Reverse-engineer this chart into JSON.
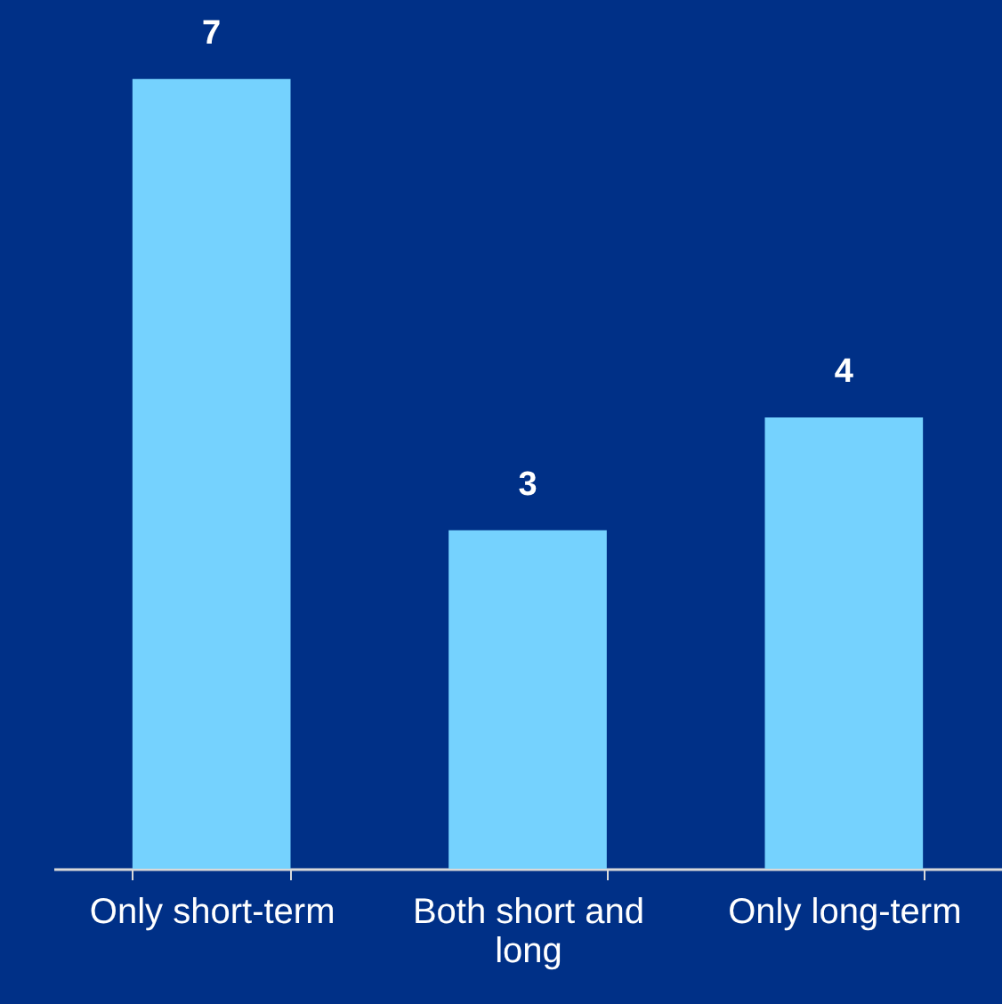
{
  "chart_data": {
    "type": "bar",
    "categories": [
      "Only short-term",
      "Both short and long",
      "Only long-term"
    ],
    "values": [
      7,
      3,
      4
    ],
    "color": "#75d2fe",
    "data_labels": true
  }
}
